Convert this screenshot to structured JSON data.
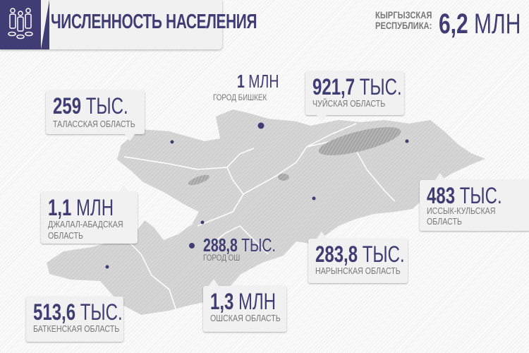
{
  "header": {
    "title": "ЧИСЛЕННОСТЬ НАСЕЛЕНИЯ",
    "icon": "people-icon"
  },
  "country": {
    "label_line1": "КЫРГЫЗСКАЯ",
    "label_line2": "РЕСПУБЛИКА:",
    "number": "6,2",
    "unit": "МЛН"
  },
  "colors": {
    "accent": "#3f3d74",
    "map": "#d4d4d4",
    "box": "#f1f1f1"
  },
  "regions": {
    "talas": {
      "number": "259",
      "unit": "ТЫС.",
      "label": "ТАЛАССКАЯ ОБЛАСТЬ"
    },
    "bishkek": {
      "number": "1",
      "unit": "МЛН",
      "label": "ГОРОД БИШКЕК"
    },
    "chui": {
      "number": "921,7",
      "unit": "ТЫС.",
      "label": "ЧУЙСКАЯ ОБЛАСТЬ"
    },
    "jalalabad": {
      "number": "1,1",
      "unit": "МЛН",
      "label_line1": "ДЖАЛАЛ-АБАДСКАЯ",
      "label_line2": "ОБЛАСТЬ"
    },
    "issykkul": {
      "number": "483",
      "unit": "ТЫС.",
      "label_line1": "ИССЫК-КУЛЬСКАЯ",
      "label_line2": "ОБЛАСТЬ"
    },
    "osh_city": {
      "number": "288,8",
      "unit": "ТЫС.",
      "label": "ГОРОД ОШ"
    },
    "naryn": {
      "number": "283,8",
      "unit": "ТЫС.",
      "label": "НАРЫНСКАЯ ОБЛАСТЬ"
    },
    "osh": {
      "number": "1,3",
      "unit": "МЛН",
      "label": "ОШСКАЯ ОБЛАСТЬ"
    },
    "batken": {
      "number": "513,6",
      "unit": "ТЫС.",
      "label": "БАТКЕНСКАЯ ОБЛАСТЬ"
    }
  }
}
